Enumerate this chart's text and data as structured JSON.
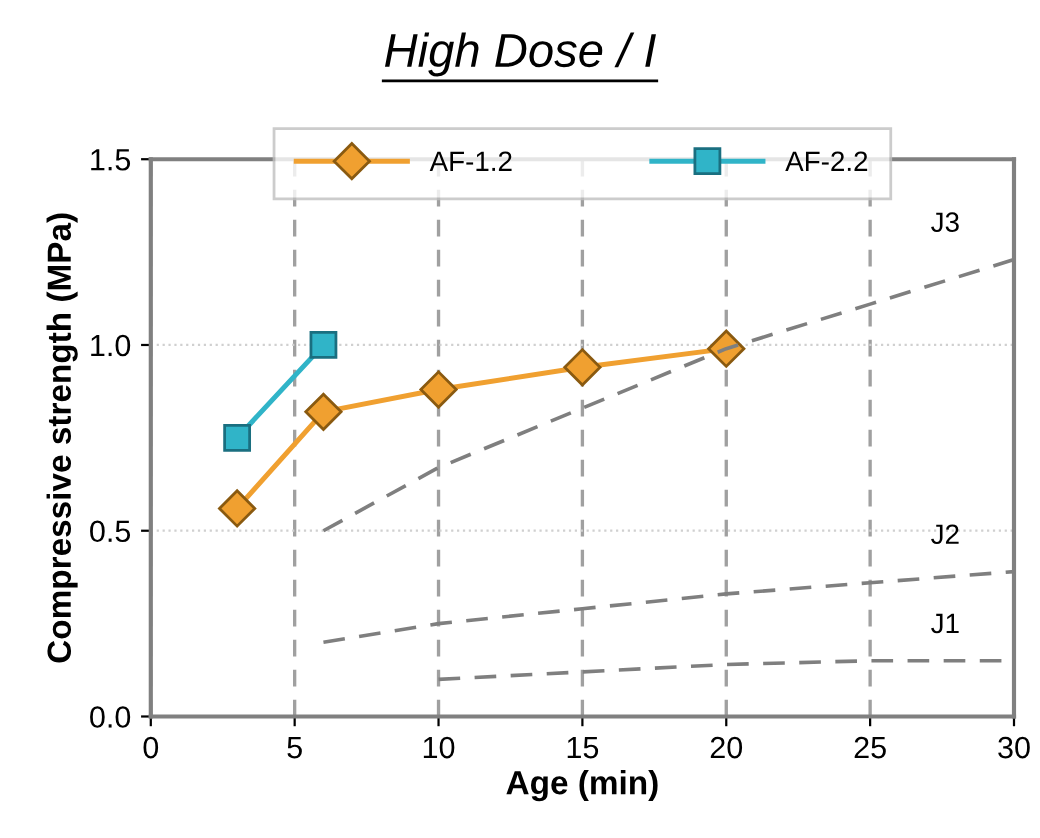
{
  "chart_data": {
    "type": "line",
    "title": "High Dose / I",
    "xlabel": "Age (min)",
    "ylabel": "Compressive strength (MPa)",
    "xlim": [
      0,
      30
    ],
    "xticks": [
      0,
      5,
      10,
      15,
      20,
      25,
      30
    ],
    "ylim": [
      0,
      1.5
    ],
    "yticks": [
      {
        "value": 0,
        "label": "0.0"
      },
      {
        "value": 0.5,
        "label": "0.5"
      },
      {
        "value": 1.0,
        "label": "1.0"
      },
      {
        "value": 1.5,
        "label": "1.5"
      }
    ],
    "grid": true,
    "legend": "top",
    "series": [
      {
        "name": "AF-1.2",
        "color": "#f0a030",
        "marker": "diamond",
        "line_style": "solid",
        "x": [
          3,
          6,
          10,
          15,
          20
        ],
        "values": [
          0.56,
          0.82,
          0.88,
          0.94,
          0.99
        ]
      },
      {
        "name": "AF-2.2",
        "color": "#30b4c8",
        "marker": "square",
        "line_style": "solid",
        "x": [
          3,
          6
        ],
        "values": [
          0.75,
          1.0
        ]
      },
      {
        "name": "J3",
        "color": "#7f7f7f",
        "marker": "none",
        "line_style": "dashed",
        "x": [
          6,
          10,
          15,
          20,
          25,
          30
        ],
        "values": [
          0.5,
          0.67,
          0.83,
          0.99,
          1.11,
          1.23
        ]
      },
      {
        "name": "J2",
        "color": "#7f7f7f",
        "marker": "none",
        "line_style": "dashed",
        "x": [
          6,
          10,
          15,
          20,
          25,
          30
        ],
        "values": [
          0.2,
          0.25,
          0.29,
          0.33,
          0.36,
          0.39
        ]
      },
      {
        "name": "J1",
        "color": "#7f7f7f",
        "marker": "none",
        "line_style": "dashed",
        "x": [
          10,
          15,
          20,
          25,
          30
        ],
        "values": [
          0.1,
          0.12,
          0.14,
          0.15,
          0.15
        ]
      }
    ]
  }
}
